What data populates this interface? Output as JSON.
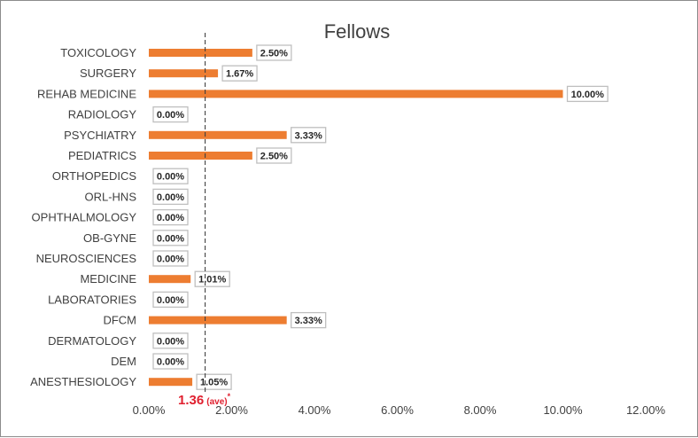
{
  "chart_data": {
    "type": "bar",
    "orientation": "horizontal",
    "title": "Fellows",
    "categories": [
      "ANESTHESIOLOGY",
      "DEM",
      "DERMATOLOGY",
      "DFCM",
      "LABORATORIES",
      "MEDICINE",
      "NEUROSCIENCES",
      "OB-GYNE",
      "OPHTHALMOLOGY",
      "ORL-HNS",
      "ORTHOPEDICS",
      "PEDIATRICS",
      "PSYCHIATRY",
      "RADIOLOGY",
      "REHAB MEDICINE",
      "SURGERY",
      "TOXICOLOGY"
    ],
    "values": [
      1.05,
      0.0,
      0.0,
      3.33,
      0.0,
      1.01,
      0.0,
      0.0,
      0.0,
      0.0,
      0.0,
      2.5,
      3.33,
      0.0,
      10.0,
      1.67,
      2.5
    ],
    "data_labels": [
      "1.05%",
      "0.00%",
      "0.00%",
      "3.33%",
      "0.00%",
      "1.01%",
      "0.00%",
      "0.00%",
      "0.00%",
      "0.00%",
      "0.00%",
      "2.50%",
      "3.33%",
      "0.00%",
      "10.00%",
      "1.67%",
      "2.50%"
    ],
    "x_ticks": [
      "0.00%",
      "2.00%",
      "4.00%",
      "6.00%",
      "8.00%",
      "10.00%",
      "12.00%"
    ],
    "xlim": [
      0,
      12
    ],
    "average": {
      "value": 1.36,
      "label_value": "1.36",
      "label_suffix": "(ave)",
      "label_mark": "*"
    },
    "bar_color": "#ed7d31",
    "average_color": "#e0202f",
    "grid": false,
    "legend": "none"
  }
}
